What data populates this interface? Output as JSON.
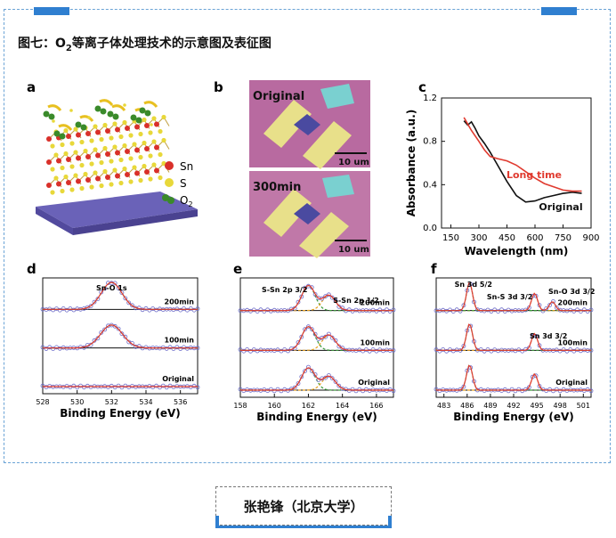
{
  "figure_title": "图七：O2等离子体处理技术的示意图及表征图",
  "figure_title_parts": {
    "pre": "图七：O",
    "sub": "2",
    "post": "等离子体处理技术的示意图及表征图"
  },
  "caption": "张艳锋（北京大学）",
  "panel_letters": [
    "a",
    "b",
    "c",
    "d",
    "e",
    "f"
  ],
  "colors": {
    "frame": "#6aa3d6",
    "accent": "#2f7fd0",
    "red": "#e03a2f",
    "black": "#111111",
    "blue_dots": "#6a6ac8",
    "green_dash": "#3a9a3a",
    "orange_dash": "#e6a020"
  },
  "panel_a": {
    "legend": [
      {
        "label": "Sn",
        "color": "#d9302a"
      },
      {
        "label": "S",
        "color": "#e8d83a"
      },
      {
        "label": "O2",
        "label_pre": "O",
        "label_sub": "2",
        "color": "#3a8a2a"
      }
    ]
  },
  "panel_b": {
    "images": [
      {
        "label": "Original",
        "scale": "10 um"
      },
      {
        "label": "300min",
        "scale": "10 um"
      }
    ]
  },
  "chart_data": [
    {
      "panel": "c",
      "type": "line",
      "xlabel": "Wavelength (nm)",
      "ylabel": "Absorbance (a.u.)",
      "xlim": [
        100,
        900
      ],
      "ylim": [
        0,
        1.2
      ],
      "xticks": [
        150,
        300,
        450,
        600,
        750,
        900
      ],
      "yticks": [
        0.0,
        0.4,
        0.8,
        1.2
      ],
      "series": [
        {
          "name": "Original",
          "color": "#111111",
          "x": [
            220,
            240,
            260,
            280,
            300,
            330,
            360,
            400,
            450,
            500,
            550,
            600,
            650,
            700,
            750,
            800,
            850
          ],
          "y": [
            0.99,
            0.95,
            0.98,
            0.92,
            0.85,
            0.78,
            0.7,
            0.58,
            0.43,
            0.3,
            0.24,
            0.25,
            0.28,
            0.3,
            0.32,
            0.33,
            0.32
          ]
        },
        {
          "name": "Long time",
          "color": "#e03a2f",
          "x": [
            220,
            240,
            260,
            280,
            300,
            330,
            360,
            400,
            450,
            500,
            550,
            600,
            650,
            700,
            750,
            800,
            850
          ],
          "y": [
            1.02,
            0.96,
            0.9,
            0.85,
            0.8,
            0.72,
            0.66,
            0.64,
            0.62,
            0.58,
            0.52,
            0.46,
            0.41,
            0.38,
            0.35,
            0.34,
            0.34
          ]
        }
      ]
    },
    {
      "panel": "d",
      "type": "line",
      "xlabel": "Binding Energy (eV)",
      "xlim": [
        528,
        537
      ],
      "xticks": [
        528,
        530,
        532,
        534,
        536
      ],
      "annotations": [
        "Sn-O 1s"
      ],
      "traces": [
        {
          "name": "200min",
          "peak_center": 532.0,
          "peak_width": 0.85,
          "peak_height": 1.0
        },
        {
          "name": "100min",
          "peak_center": 532.0,
          "peak_width": 0.9,
          "peak_height": 0.85
        },
        {
          "name": "Original",
          "peak_center": 532.0,
          "peak_width": 1.0,
          "peak_height": 0.0
        }
      ]
    },
    {
      "panel": "e",
      "type": "line",
      "xlabel": "Binding Energy (eV)",
      "xlim": [
        158,
        167
      ],
      "xticks": [
        158,
        160,
        162,
        164,
        166
      ],
      "annotations": [
        "S-Sn 2p 3/2",
        "S-Sn 2p 1/2"
      ],
      "traces": [
        {
          "name": "200min",
          "peaks": [
            {
              "c": 162.0,
              "h": 0.9
            },
            {
              "c": 163.2,
              "h": 0.55
            }
          ]
        },
        {
          "name": "100min",
          "peaks": [
            {
              "c": 162.0,
              "h": 0.85
            },
            {
              "c": 163.2,
              "h": 0.55
            }
          ]
        },
        {
          "name": "Original",
          "peaks": [
            {
              "c": 162.0,
              "h": 0.8
            },
            {
              "c": 163.2,
              "h": 0.5
            }
          ]
        }
      ]
    },
    {
      "panel": "f",
      "type": "line",
      "xlabel": "Binding Energy (eV)",
      "xlim": [
        482,
        502
      ],
      "xticks": [
        483,
        486,
        489,
        492,
        495,
        498,
        501
      ],
      "annotations": [
        "Sn 3d 5/2",
        "Sn-S 3d 3/2",
        "Sn-O 3d 3/2",
        "Sn 3d 3/2"
      ],
      "traces": [
        {
          "name": "200min",
          "peaks": [
            {
              "c": 486.3,
              "h": 1.0
            },
            {
              "c": 494.7,
              "h": 0.62
            },
            {
              "c": 497.0,
              "h": 0.32
            }
          ]
        },
        {
          "name": "100min",
          "peaks": [
            {
              "c": 486.3,
              "h": 0.95
            },
            {
              "c": 494.7,
              "h": 0.6
            }
          ]
        },
        {
          "name": "Original",
          "peaks": [
            {
              "c": 486.3,
              "h": 0.9
            },
            {
              "c": 494.7,
              "h": 0.58
            }
          ]
        }
      ]
    }
  ]
}
